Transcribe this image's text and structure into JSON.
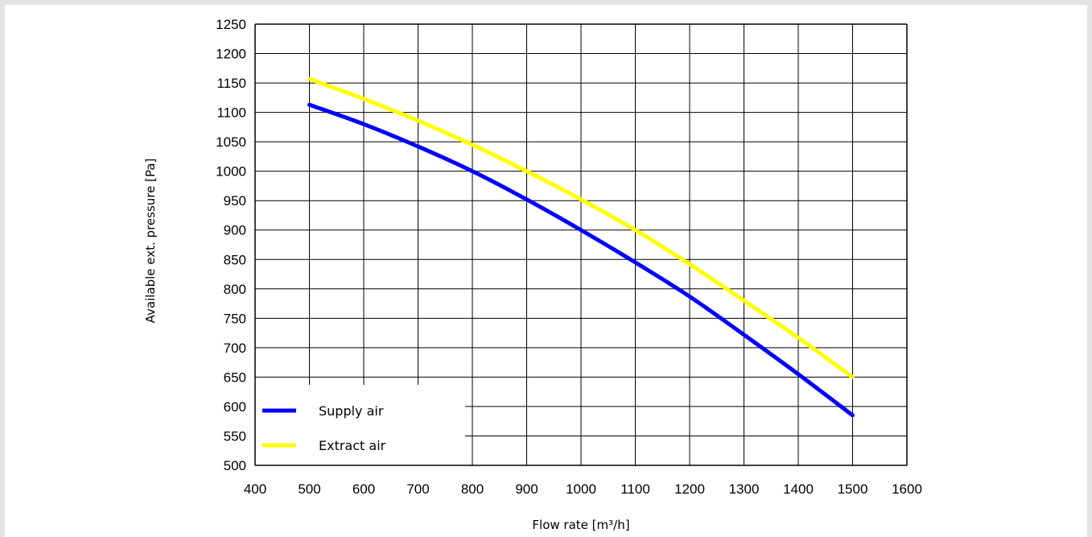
{
  "chart_data": {
    "type": "line",
    "xlabel": "Flow rate [m³/h]",
    "ylabel": "Available ext. pressure [Pa]",
    "xlim": [
      400,
      1600
    ],
    "ylim": [
      500,
      1250
    ],
    "x_ticks": [
      400,
      500,
      600,
      700,
      800,
      900,
      1000,
      1100,
      1200,
      1300,
      1400,
      1500,
      1600
    ],
    "y_ticks": [
      500,
      550,
      600,
      650,
      700,
      750,
      800,
      850,
      900,
      950,
      1000,
      1050,
      1100,
      1150,
      1200,
      1250
    ],
    "grid": true,
    "legend_position": "bottom-left",
    "series": [
      {
        "name": "Supply air",
        "color": "#0000ff",
        "x": [
          500,
          600,
          700,
          800,
          900,
          1000,
          1100,
          1200,
          1300,
          1400,
          1500
        ],
        "y": [
          1113,
          1080,
          1042,
          1000,
          952,
          900,
          845,
          787,
          722,
          655,
          585
        ]
      },
      {
        "name": "Extract air",
        "color": "#ffff00",
        "x": [
          500,
          600,
          700,
          800,
          900,
          1000,
          1100,
          1200,
          1300,
          1400,
          1500
        ],
        "y": [
          1157,
          1123,
          1086,
          1045,
          1000,
          952,
          900,
          842,
          780,
          717,
          650
        ]
      }
    ]
  }
}
